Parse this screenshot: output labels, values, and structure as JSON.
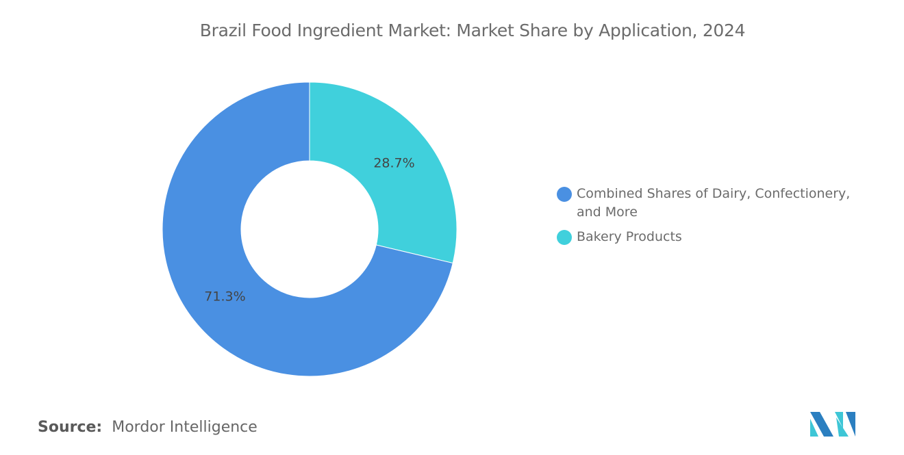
{
  "chart_data": {
    "type": "pie",
    "donut": true,
    "title": "Brazil Food Ingredient Market: Market Share by Application, 2024",
    "slices": [
      {
        "label": "Bakery Products",
        "value": 28.7,
        "display": "28.7%",
        "color": "#40d0dc"
      },
      {
        "label": "Combined Shares of Dairy, Confectionery, and More",
        "value": 71.3,
        "display": "71.3%",
        "color": "#4a90e2"
      }
    ],
    "legend_position": "right"
  },
  "source": {
    "label": "Source:",
    "value": "Mordor Intelligence"
  },
  "logo": {
    "text": "Mordor Intelligence",
    "colors": [
      "#2b7fc0",
      "#3ec6d6"
    ]
  }
}
